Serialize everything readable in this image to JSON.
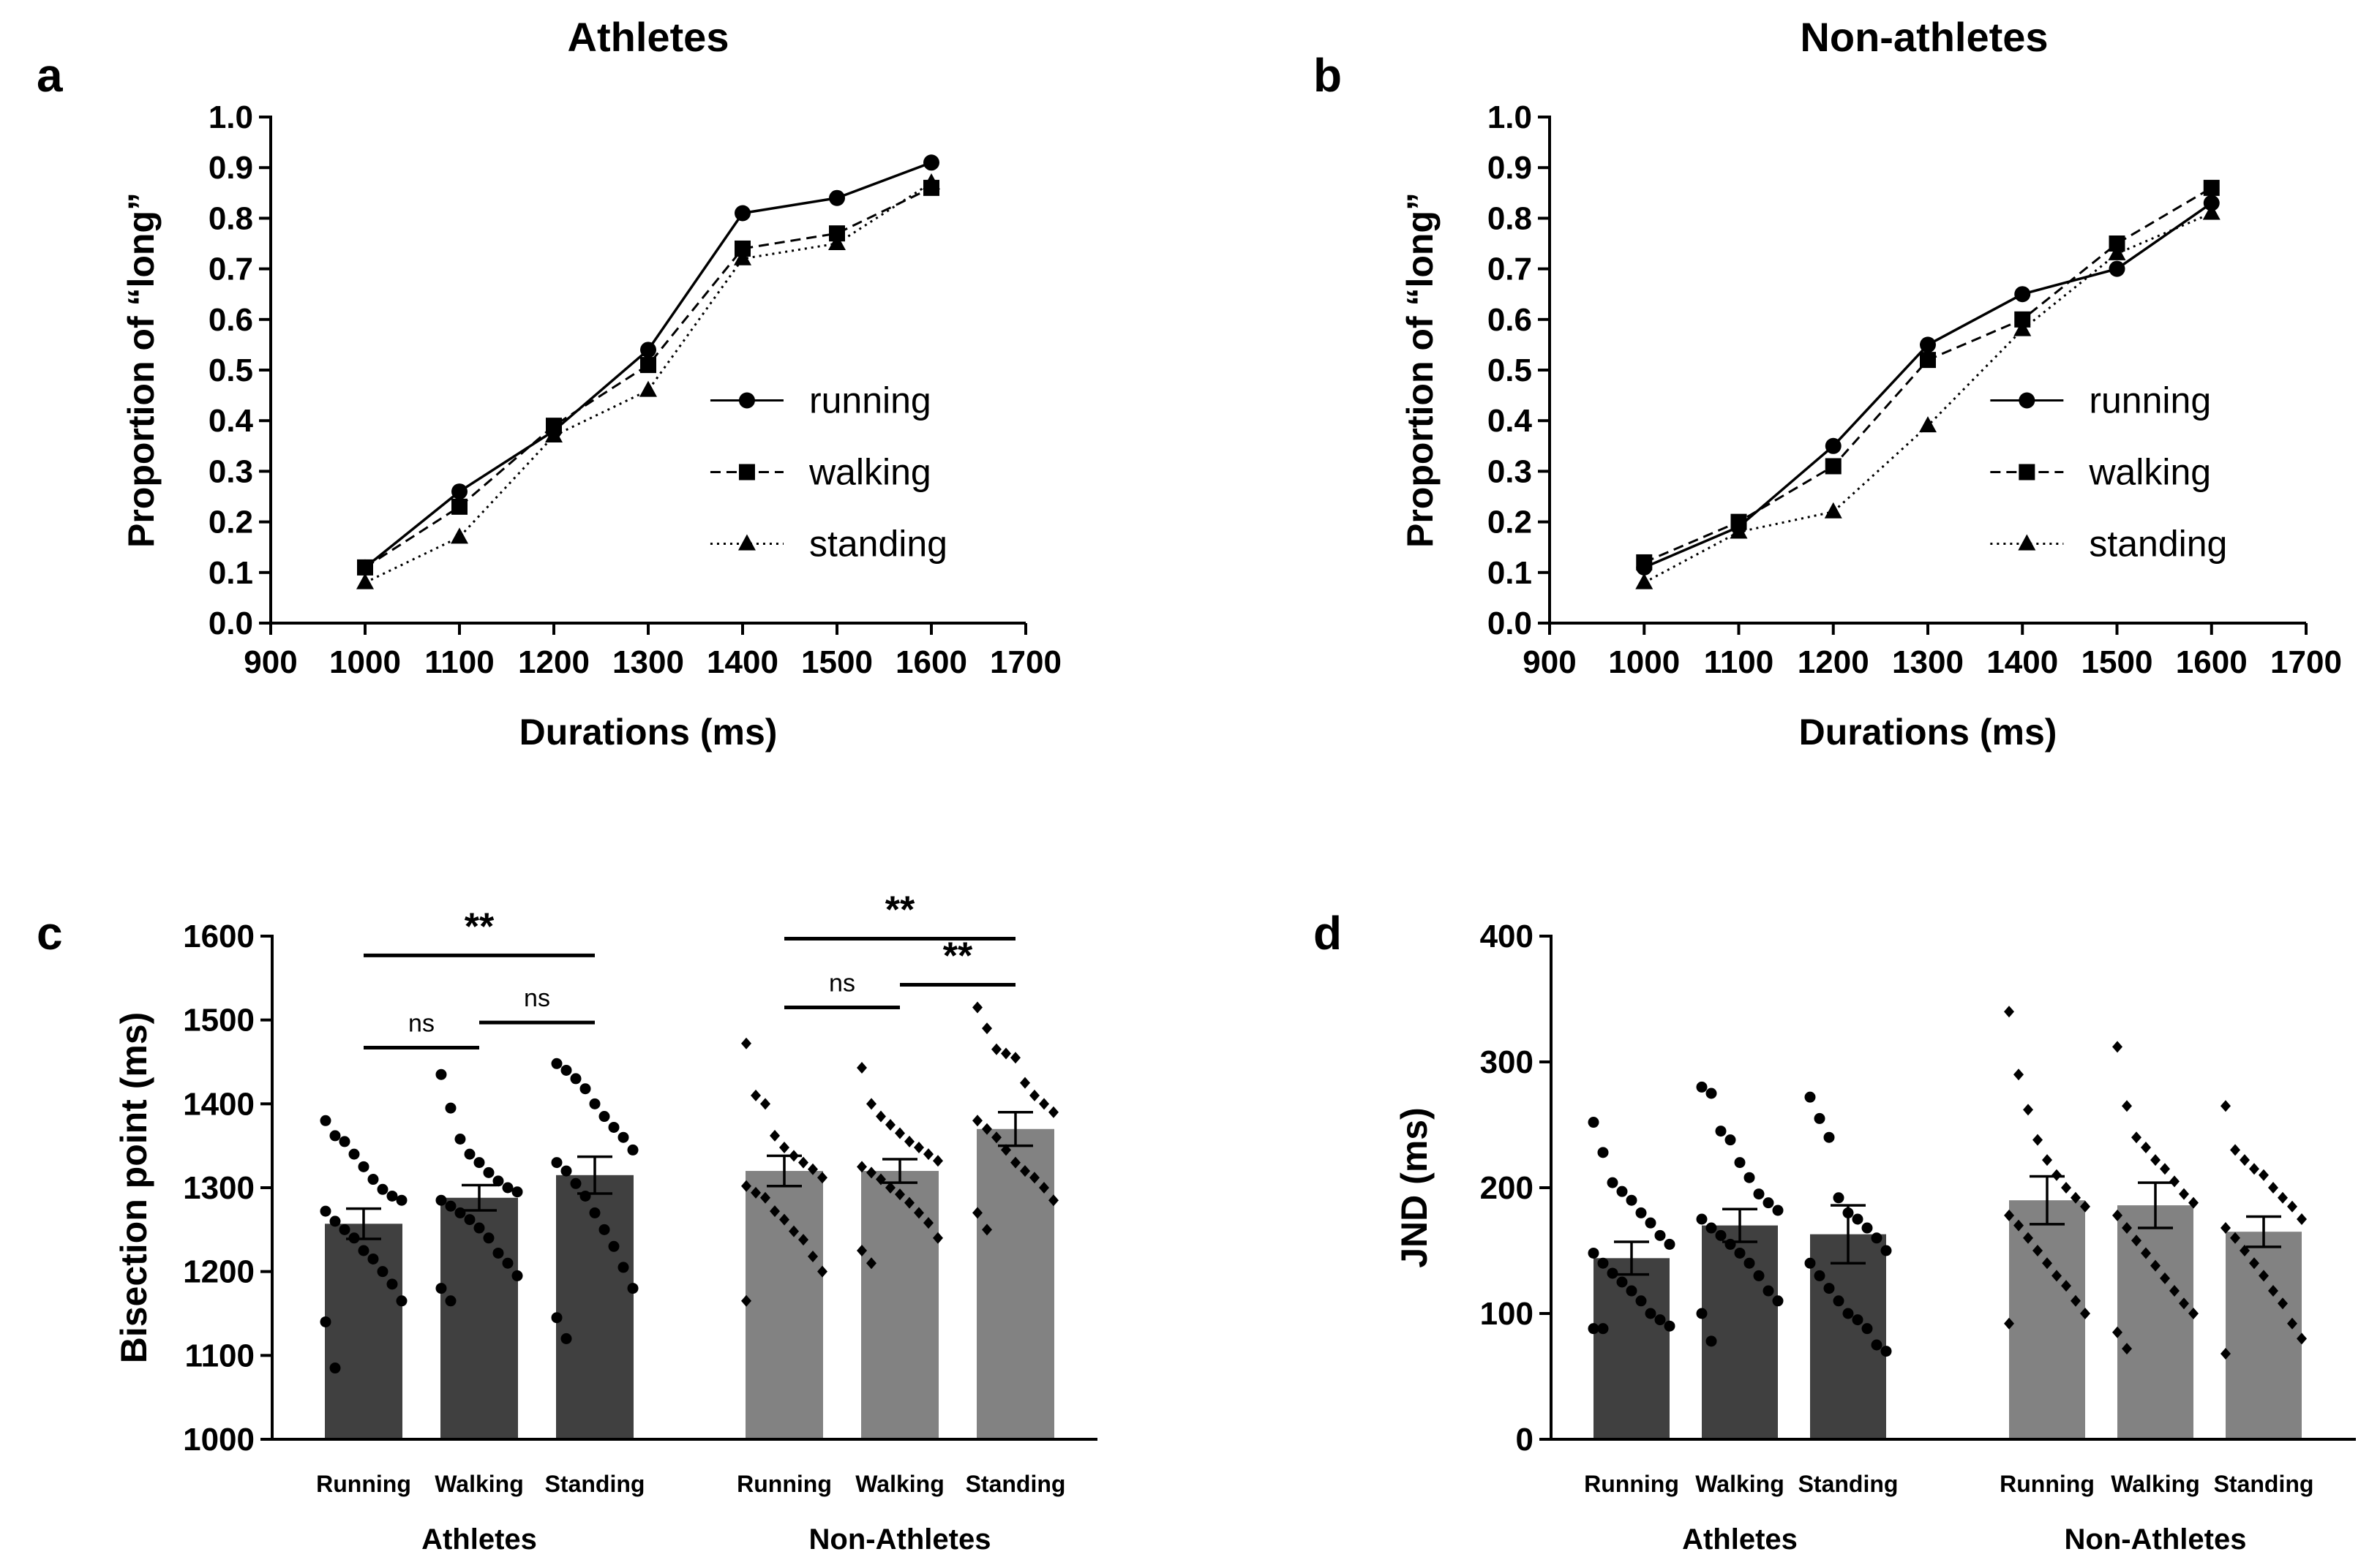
{
  "chart_data": [
    {
      "id": "a",
      "panel": "a",
      "type": "line",
      "title": "Athletes",
      "xlabel": "Durations (ms)",
      "ylabel": "Proportion of “long”",
      "xlim": [
        900,
        1700
      ],
      "ylim": [
        0.0,
        1.0
      ],
      "xticks": [
        "900",
        "1000",
        "1100",
        "1200",
        "1300",
        "1400",
        "1500",
        "1600",
        "1700"
      ],
      "yticks": [
        "0.0",
        "0.1",
        "0.2",
        "0.3",
        "0.4",
        "0.5",
        "0.6",
        "0.7",
        "0.8",
        "0.9",
        "1.0"
      ],
      "x": [
        1000,
        1100,
        1200,
        1300,
        1400,
        1500,
        1600
      ],
      "series": [
        {
          "name": "running",
          "marker": "circle",
          "dash": "solid",
          "values": [
            0.11,
            0.26,
            0.38,
            0.54,
            0.81,
            0.84,
            0.91
          ]
        },
        {
          "name": "walking",
          "marker": "square",
          "dash": "dashed",
          "values": [
            0.11,
            0.23,
            0.39,
            0.51,
            0.74,
            0.77,
            0.86
          ]
        },
        {
          "name": "standing",
          "marker": "triangle",
          "dash": "dotted",
          "values": [
            0.08,
            0.17,
            0.37,
            0.46,
            0.72,
            0.75,
            0.87
          ]
        }
      ],
      "legend_position": "right"
    },
    {
      "id": "b",
      "panel": "b",
      "type": "line",
      "title": "Non-athletes",
      "xlabel": "Durations (ms)",
      "ylabel": "Proportion of “long”",
      "xlim": [
        900,
        1700
      ],
      "ylim": [
        0.0,
        1.0
      ],
      "xticks": [
        "900",
        "1000",
        "1100",
        "1200",
        "1300",
        "1400",
        "1500",
        "1600",
        "1700"
      ],
      "yticks": [
        "0.0",
        "0.1",
        "0.2",
        "0.3",
        "0.4",
        "0.5",
        "0.6",
        "0.7",
        "0.8",
        "0.9",
        "1.0"
      ],
      "x": [
        1000,
        1100,
        1200,
        1300,
        1400,
        1500,
        1600
      ],
      "series": [
        {
          "name": "running",
          "marker": "circle",
          "dash": "solid",
          "values": [
            0.11,
            0.19,
            0.35,
            0.55,
            0.65,
            0.7,
            0.83
          ]
        },
        {
          "name": "walking",
          "marker": "square",
          "dash": "dashed",
          "values": [
            0.12,
            0.2,
            0.31,
            0.52,
            0.6,
            0.75,
            0.86
          ]
        },
        {
          "name": "standing",
          "marker": "triangle",
          "dash": "dotted",
          "values": [
            0.08,
            0.18,
            0.22,
            0.39,
            0.58,
            0.73,
            0.81
          ]
        }
      ],
      "legend_position": "right"
    },
    {
      "id": "c",
      "panel": "c",
      "type": "bar",
      "ylabel": "Bisection point (ms)",
      "ylim": [
        1000,
        1600
      ],
      "yticks": [
        "1000",
        "1100",
        "1200",
        "1300",
        "1400",
        "1500",
        "1600"
      ],
      "groups": [
        {
          "name": "Athletes",
          "color": "#404040",
          "bars": [
            {
              "label": "Running",
              "mean": 1257,
              "sem": 18,
              "points": [
                1380,
                1362,
                1355,
                1340,
                1325,
                1310,
                1298,
                1290,
                1285,
                1272,
                1260,
                1250,
                1240,
                1225,
                1215,
                1200,
                1185,
                1165,
                1140,
                1085
              ]
            },
            {
              "label": "Walking",
              "mean": 1288,
              "sem": 15,
              "points": [
                1435,
                1395,
                1358,
                1340,
                1330,
                1318,
                1308,
                1300,
                1295,
                1285,
                1278,
                1270,
                1262,
                1252,
                1240,
                1222,
                1210,
                1195,
                1180,
                1165
              ]
            },
            {
              "label": "Standing",
              "mean": 1315,
              "sem": 22,
              "points": [
                1448,
                1440,
                1430,
                1418,
                1400,
                1385,
                1372,
                1360,
                1345,
                1330,
                1320,
                1305,
                1290,
                1270,
                1250,
                1230,
                1205,
                1180,
                1145,
                1120
              ]
            }
          ]
        },
        {
          "name": "Non-Athletes",
          "color": "#828282",
          "bars": [
            {
              "label": "Running",
              "mean": 1320,
              "sem": 18,
              "points": [
                1472,
                1410,
                1400,
                1362,
                1348,
                1338,
                1330,
                1322,
                1312,
                1302,
                1294,
                1288,
                1272,
                1262,
                1248,
                1238,
                1218,
                1200,
                1165
              ]
            },
            {
              "label": "Walking",
              "mean": 1320,
              "sem": 14,
              "points": [
                1443,
                1400,
                1385,
                1375,
                1365,
                1355,
                1348,
                1340,
                1332,
                1325,
                1318,
                1310,
                1300,
                1292,
                1282,
                1270,
                1258,
                1240,
                1225,
                1210
              ]
            },
            {
              "label": "Standing",
              "mean": 1370,
              "sem": 20,
              "points": [
                1515,
                1490,
                1465,
                1460,
                1455,
                1425,
                1410,
                1400,
                1390,
                1380,
                1370,
                1360,
                1345,
                1330,
                1320,
                1312,
                1300,
                1285,
                1270,
                1250
              ]
            }
          ]
        }
      ],
      "annotations": [
        {
          "from": [
            0,
            0
          ],
          "to": [
            0,
            1
          ],
          "label": "ns",
          "at": 1467
        },
        {
          "from": [
            0,
            1
          ],
          "to": [
            0,
            2
          ],
          "label": "ns",
          "at": 1497
        },
        {
          "from": [
            0,
            0
          ],
          "to": [
            0,
            2
          ],
          "label": "**",
          "at": 1577
        },
        {
          "from": [
            1,
            0
          ],
          "to": [
            1,
            1
          ],
          "label": "ns",
          "at": 1515
        },
        {
          "from": [
            1,
            1
          ],
          "to": [
            1,
            2
          ],
          "label": "**",
          "at": 1542
        },
        {
          "from": [
            1,
            0
          ],
          "to": [
            1,
            2
          ],
          "label": "**",
          "at": 1597
        }
      ]
    },
    {
      "id": "d",
      "panel": "d",
      "type": "bar",
      "ylabel": "JND (ms)",
      "ylim": [
        0,
        400
      ],
      "yticks": [
        "0",
        "100",
        "200",
        "300",
        "400"
      ],
      "groups": [
        {
          "name": "Athletes",
          "color": "#404040",
          "bars": [
            {
              "label": "Running",
              "mean": 144,
              "sem": 13,
              "points": [
                252,
                228,
                204,
                197,
                190,
                180,
                172,
                162,
                155,
                148,
                140,
                132,
                125,
                118,
                110,
                100,
                95,
                90,
                88,
                88
              ]
            },
            {
              "label": "Walking",
              "mean": 170,
              "sem": 13,
              "points": [
                280,
                275,
                245,
                238,
                220,
                208,
                195,
                188,
                182,
                175,
                168,
                162,
                155,
                148,
                140,
                130,
                118,
                110,
                100,
                78
              ]
            },
            {
              "label": "Standing",
              "mean": 163,
              "sem": 23,
              "points": [
                272,
                255,
                240,
                192,
                180,
                175,
                168,
                160,
                150,
                140,
                130,
                120,
                110,
                100,
                95,
                88,
                75,
                70
              ]
            }
          ]
        },
        {
          "name": "Non-Athletes",
          "color": "#828282",
          "bars": [
            {
              "label": "Running",
              "mean": 190,
              "sem": 19,
              "points": [
                340,
                290,
                262,
                238,
                222,
                210,
                200,
                192,
                185,
                178,
                170,
                160,
                150,
                140,
                130,
                122,
                110,
                100,
                92
              ]
            },
            {
              "label": "Walking",
              "mean": 186,
              "sem": 18,
              "points": [
                312,
                265,
                240,
                232,
                222,
                215,
                205,
                195,
                188,
                178,
                168,
                158,
                148,
                138,
                128,
                118,
                108,
                100,
                85,
                72
              ]
            },
            {
              "label": "Standing",
              "mean": 165,
              "sem": 12,
              "points": [
                265,
                230,
                222,
                215,
                210,
                200,
                192,
                185,
                175,
                168,
                160,
                150,
                140,
                130,
                118,
                108,
                92,
                80,
                68
              ]
            }
          ]
        }
      ],
      "annotations": []
    }
  ]
}
